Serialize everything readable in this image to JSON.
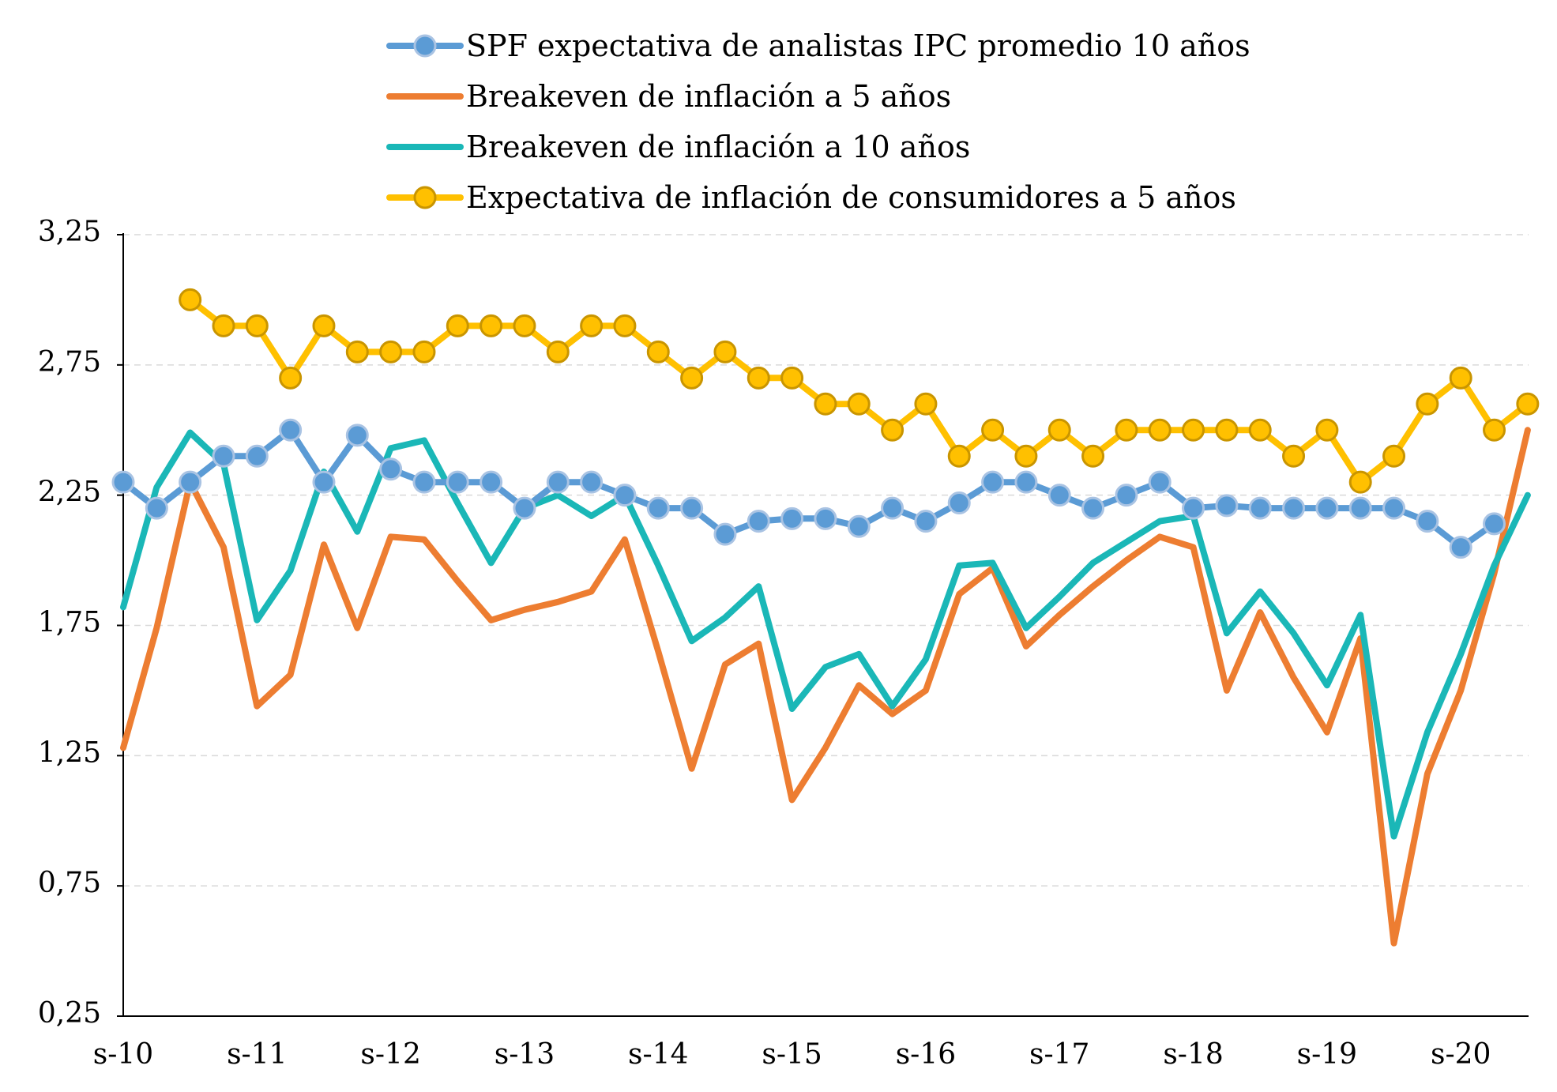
{
  "chart_data": {
    "type": "line",
    "title": "",
    "xlabel": "",
    "ylabel": "",
    "ylim": [
      0.25,
      3.25
    ],
    "yticks": [
      "3,25",
      "2,75",
      "2,25",
      "1,75",
      "1,25",
      "0,75",
      "0,25"
    ],
    "ytick_values": [
      3.25,
      2.75,
      2.25,
      1.75,
      1.25,
      0.75,
      0.25
    ],
    "xticks": [
      "s-10",
      "s-11",
      "s-12",
      "s-13",
      "s-14",
      "s-15",
      "s-16",
      "s-17",
      "s-18",
      "s-19",
      "s-20"
    ],
    "x_start": "2010-09",
    "x_step_months": 3,
    "grid": true,
    "legend_position": "top",
    "series": [
      {
        "name": "SPF expectativa de analistas IPC promedio 10 años",
        "color": "#5b9bd5",
        "marker": "circle",
        "values": [
          2.3,
          2.2,
          2.3,
          2.4,
          2.4,
          2.5,
          2.3,
          2.48,
          2.35,
          2.3,
          2.3,
          2.3,
          2.2,
          2.3,
          2.3,
          2.25,
          2.2,
          2.2,
          2.1,
          2.15,
          2.16,
          2.16,
          2.13,
          2.2,
          2.15,
          2.22,
          2.3,
          2.3,
          2.25,
          2.2,
          2.25,
          2.3,
          2.2,
          2.21,
          2.2,
          2.2,
          2.2,
          2.2,
          2.2,
          2.15,
          2.05,
          2.14
        ]
      },
      {
        "name": "Breakeven de inflación a 5 años",
        "color": "#ed7d31",
        "marker": "none",
        "values": [
          1.28,
          1.74,
          2.3,
          2.05,
          1.44,
          1.56,
          2.06,
          1.74,
          2.09,
          2.08,
          1.92,
          1.77,
          1.81,
          1.84,
          1.88,
          2.08,
          1.65,
          1.2,
          1.6,
          1.68,
          1.08,
          1.28,
          1.52,
          1.41,
          1.5,
          1.87,
          1.97,
          1.67,
          1.79,
          1.9,
          2.0,
          2.09,
          2.05,
          1.5,
          1.8,
          1.55,
          1.34,
          1.7,
          0.53,
          1.18,
          1.5,
          1.95,
          2.5
        ]
      },
      {
        "name": "Breakeven de inflación a 10 años",
        "color": "#1ab7b7",
        "marker": "none",
        "values": [
          1.82,
          2.28,
          2.49,
          2.37,
          1.77,
          1.96,
          2.34,
          2.11,
          2.43,
          2.46,
          2.22,
          1.99,
          2.2,
          2.25,
          2.17,
          2.25,
          1.98,
          1.69,
          1.78,
          1.9,
          1.43,
          1.59,
          1.64,
          1.44,
          1.62,
          1.98,
          1.99,
          1.74,
          1.86,
          1.99,
          2.07,
          2.15,
          2.17,
          1.72,
          1.88,
          1.72,
          1.52,
          1.79,
          0.94,
          1.34,
          1.64,
          1.98,
          2.25
        ]
      },
      {
        "name": "Expectativa de inflación de consumidores a 5 años",
        "color": "#ffc000",
        "marker": "circle",
        "values": [
          null,
          null,
          3.0,
          2.9,
          2.9,
          2.7,
          2.9,
          2.8,
          2.8,
          2.8,
          2.9,
          2.9,
          2.9,
          2.8,
          2.9,
          2.9,
          2.8,
          2.7,
          2.8,
          2.7,
          2.7,
          2.6,
          2.6,
          2.5,
          2.6,
          2.4,
          2.5,
          2.4,
          2.5,
          2.4,
          2.5,
          2.5,
          2.5,
          2.5,
          2.5,
          2.4,
          2.5,
          2.3,
          2.4,
          2.6,
          2.7,
          2.5,
          2.6
        ]
      }
    ]
  }
}
